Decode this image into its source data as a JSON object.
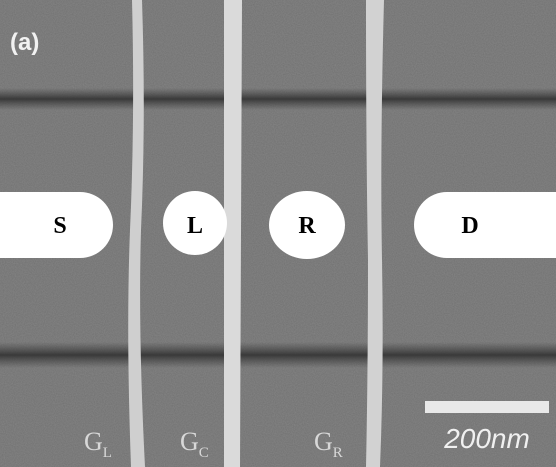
{
  "figure_tag": "(a)",
  "regions": {
    "source": "S",
    "left_dot": "L",
    "right_dot": "R",
    "drain": "D"
  },
  "gates": [
    {
      "label": "G",
      "subscript": "L"
    },
    {
      "label": "G",
      "subscript": "C"
    },
    {
      "label": "G",
      "subscript": "R"
    }
  ],
  "scale_bar": "200nm"
}
